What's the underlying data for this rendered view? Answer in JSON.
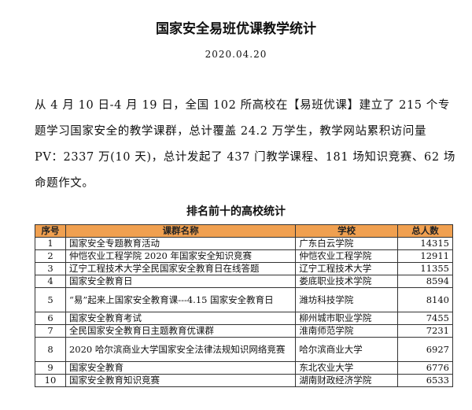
{
  "title": "国家安全易班优课教学统计",
  "date": "2020.04.20",
  "paragraph": "从 4 月 10 日-4 月 19 日，全国 102 所高校在【易班优课】建立了 215 个专题学习国家安全的教学课群，总计覆盖 24.2 万学生，教学网站累积访问量 PV：2337 万(10 天)，总计发起了 437 门教学课程、181 场知识竞赛、62 场命题作文。",
  "table": {
    "caption": "排名前十的高校统计",
    "header_color": "#f0a050",
    "headers": [
      "序号",
      "课群名称",
      "学校",
      "总人数"
    ],
    "rows": [
      {
        "no": "1",
        "name": "国家安全专题教育活动",
        "school": "广东白云学院",
        "total": "14315"
      },
      {
        "no": "2",
        "name": "仲恺农业工程学院 2020 年国家安全知识竞赛",
        "school": "仲恺农业工程学院",
        "total": "12911"
      },
      {
        "no": "3",
        "name": "辽宁工程技术大学全民国家安全教育日在线答题",
        "school": "辽宁工程技术大学",
        "total": "11355"
      },
      {
        "no": "4",
        "name": "国家安全教育日",
        "school": "娄底职业技术学院",
        "total": "8594"
      },
      {
        "no": "5",
        "name": "“易”起来上国家安全教育课---4.15 国家安全教育日",
        "school": "潍坊科技学院",
        "total": "8140"
      },
      {
        "no": "6",
        "name": "国家安全教育考试",
        "school": "柳州城市职业学院",
        "total": "7455"
      },
      {
        "no": "7",
        "name": "全民国家安全教育日主题教育优课群",
        "school": "淮南师范学院",
        "total": "7231"
      },
      {
        "no": "8",
        "name": "2020 哈尔滨商业大学国家安全法律法规知识网络竞赛",
        "school": "哈尔滨商业大学",
        "total": "6927"
      },
      {
        "no": "9",
        "name": "国家安全教育",
        "school": "东北农业大学",
        "total": "6776"
      },
      {
        "no": "10",
        "name": "国家安全教育知识竞赛",
        "school": "湖南财政经济学院",
        "total": "6533"
      }
    ]
  }
}
